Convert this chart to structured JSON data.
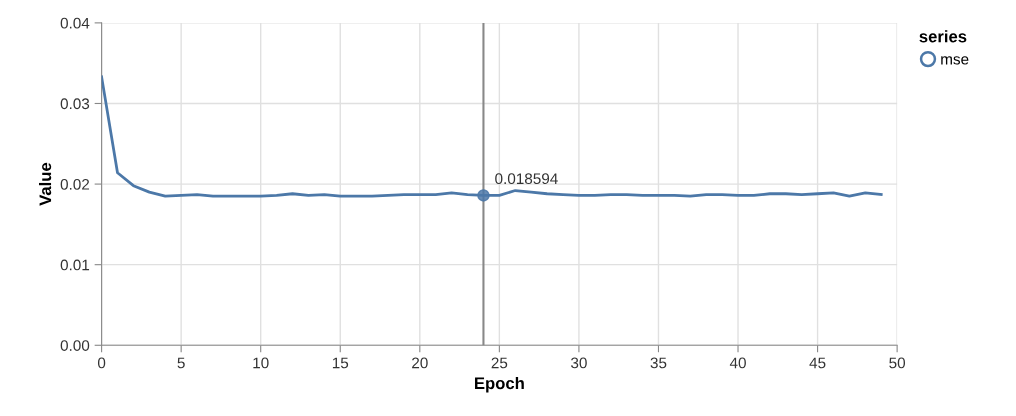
{
  "chart_data": {
    "type": "line",
    "xlabel": "Epoch",
    "ylabel": "Value",
    "legend_title": "series",
    "x": [
      0,
      1,
      2,
      3,
      4,
      5,
      6,
      7,
      8,
      9,
      10,
      11,
      12,
      13,
      14,
      15,
      16,
      17,
      18,
      19,
      20,
      21,
      22,
      23,
      24,
      25,
      26,
      27,
      28,
      29,
      30,
      31,
      32,
      33,
      34,
      35,
      36,
      37,
      38,
      39,
      40,
      41,
      42,
      43,
      44,
      45,
      46,
      47,
      48,
      49
    ],
    "series": [
      {
        "name": "mse",
        "color": "#4c78a8",
        "values": [
          0.0333,
          0.0214,
          0.0198,
          0.019,
          0.0185,
          0.0186,
          0.0187,
          0.0185,
          0.0185,
          0.0185,
          0.0185,
          0.0186,
          0.0188,
          0.0186,
          0.0187,
          0.0185,
          0.0185,
          0.0185,
          0.0186,
          0.0187,
          0.0187,
          0.0187,
          0.0189,
          0.0187,
          0.018594,
          0.0186,
          0.0192,
          0.019,
          0.0188,
          0.0187,
          0.0186,
          0.0186,
          0.0187,
          0.0187,
          0.0186,
          0.0186,
          0.0186,
          0.0185,
          0.0187,
          0.0187,
          0.0186,
          0.0186,
          0.0188,
          0.0188,
          0.0187,
          0.0188,
          0.0189,
          0.0185,
          0.0189,
          0.0187
        ]
      }
    ],
    "xlim": [
      0,
      50
    ],
    "xticks": [
      0,
      5,
      10,
      15,
      20,
      25,
      30,
      35,
      40,
      45,
      50
    ],
    "ylim": [
      0,
      0.04
    ],
    "yticks": [
      {
        "value": 0,
        "label": "0.00"
      },
      {
        "value": 0.01,
        "label": "0.01"
      },
      {
        "value": 0.02,
        "label": "0.02"
      },
      {
        "value": 0.03,
        "label": "0.03"
      },
      {
        "value": 0.04,
        "label": "0.04"
      }
    ],
    "ref_lines": [
      {
        "axis": "x",
        "value": 24,
        "color": "#888888"
      }
    ],
    "annotations": [
      {
        "text": "0.018594",
        "x": 24,
        "y": 0.018594
      }
    ],
    "grid": true,
    "legend": "top right"
  }
}
